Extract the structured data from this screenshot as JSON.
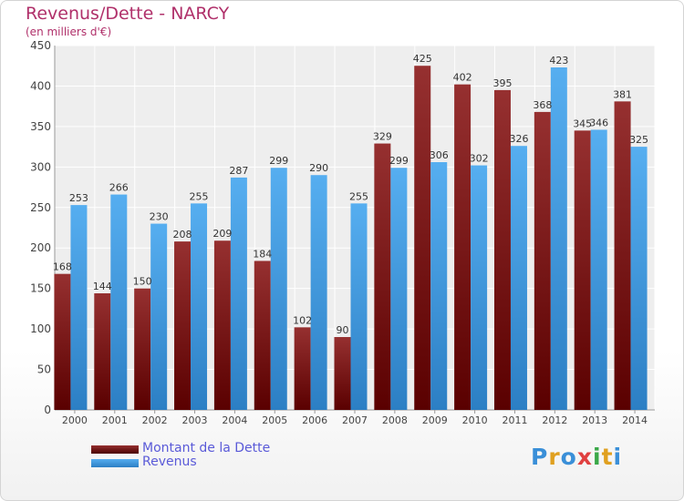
{
  "title": "Revenus/Dette - NARCY",
  "subtitle": "(en milliers d'€)",
  "colors": {
    "dette": "#7a1515",
    "revenus": "#3a96e0",
    "title": "#b0306a",
    "legend_text": "#5a5ad8"
  },
  "legend": {
    "dette_label": "Montant de la Dette",
    "revenus_label": "Revenus"
  },
  "logo": {
    "text": "Proxiti"
  },
  "chart_data": {
    "type": "bar",
    "title": "Revenus/Dette - NARCY",
    "subtitle": "(en milliers d'€)",
    "xlabel": "",
    "ylabel": "",
    "ylim": [
      0,
      450
    ],
    "yticks": [
      0,
      50,
      100,
      150,
      200,
      250,
      300,
      350,
      400,
      450
    ],
    "grid": true,
    "legend_position": "bottom-left",
    "categories": [
      "2000",
      "2001",
      "2002",
      "2003",
      "2004",
      "2005",
      "2006",
      "2007",
      "2008",
      "2009",
      "2010",
      "2011",
      "2012",
      "2013",
      "2014"
    ],
    "series": [
      {
        "name": "Montant de la Dette",
        "values": [
          168,
          144,
          150,
          208,
          209,
          184,
          102,
          90,
          329,
          425,
          402,
          395,
          368,
          345,
          381
        ]
      },
      {
        "name": "Revenus",
        "values": [
          253,
          266,
          230,
          255,
          287,
          299,
          290,
          255,
          299,
          306,
          302,
          326,
          423,
          346,
          325
        ]
      }
    ]
  }
}
